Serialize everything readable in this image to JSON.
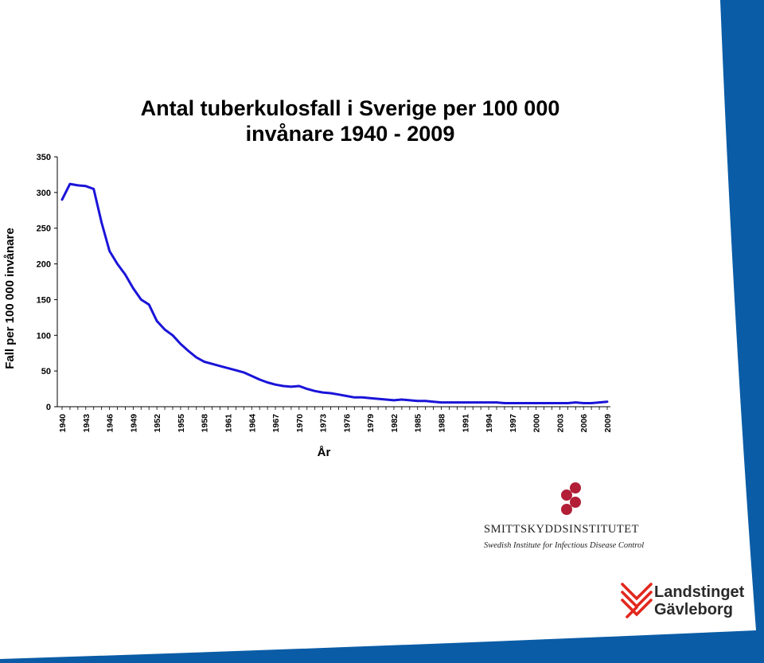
{
  "slide": {
    "accent_color": "#0a5ca6",
    "line_color": "#1a14d8"
  },
  "chart_data": {
    "type": "line",
    "title_line1": "Antal tuberkulosfall i Sverige per 100 000",
    "title_line2": "invånare 1940 - 2009",
    "xlabel": "År",
    "ylabel": "Fall per 100 000 invånare",
    "ylim": [
      0,
      350
    ],
    "yticks": [
      0,
      50,
      100,
      150,
      200,
      250,
      300,
      350
    ],
    "xticks": [
      "1940",
      "1943",
      "1946",
      "1949",
      "1952",
      "1955",
      "1958",
      "1961",
      "1964",
      "1967",
      "1970",
      "1973",
      "1976",
      "1979",
      "1982",
      "1985",
      "1988",
      "1991",
      "1994",
      "1997",
      "2000",
      "2003",
      "2006",
      "2009"
    ],
    "x": [
      1940,
      1941,
      1942,
      1943,
      1944,
      1945,
      1946,
      1947,
      1948,
      1949,
      1950,
      1951,
      1952,
      1953,
      1954,
      1955,
      1956,
      1957,
      1958,
      1959,
      1960,
      1961,
      1962,
      1963,
      1964,
      1965,
      1966,
      1967,
      1968,
      1969,
      1970,
      1971,
      1972,
      1973,
      1974,
      1975,
      1976,
      1977,
      1978,
      1979,
      1980,
      1981,
      1982,
      1983,
      1984,
      1985,
      1986,
      1987,
      1988,
      1989,
      1990,
      1991,
      1992,
      1993,
      1994,
      1995,
      1996,
      1997,
      1998,
      1999,
      2000,
      2001,
      2002,
      2003,
      2004,
      2005,
      2006,
      2007,
      2008,
      2009
    ],
    "y": [
      290,
      312,
      310,
      309,
      305,
      258,
      218,
      200,
      185,
      166,
      150,
      143,
      120,
      108,
      100,
      88,
      78,
      69,
      63,
      60,
      57,
      54,
      51,
      48,
      43,
      38,
      34,
      31,
      29,
      28,
      29,
      25,
      22,
      20,
      19,
      17,
      15,
      13,
      13,
      12,
      11,
      10,
      9,
      10,
      9,
      8,
      8,
      7,
      6,
      6,
      6,
      6,
      6,
      6,
      6,
      6,
      5,
      5,
      5,
      5,
      5,
      5,
      5,
      5,
      5,
      6,
      5,
      5,
      6,
      7
    ],
    "grid": false,
    "legend": "none"
  },
  "logos": {
    "smi_name": "SMITTSKYDDSINSTITUTET",
    "smi_sub": "Swedish Institute for Infectious Disease Control",
    "lg_line1": "Landstinget",
    "lg_line2": "Gävleborg",
    "smi_color": "#b11e36",
    "lg_color": "#e2281e"
  }
}
